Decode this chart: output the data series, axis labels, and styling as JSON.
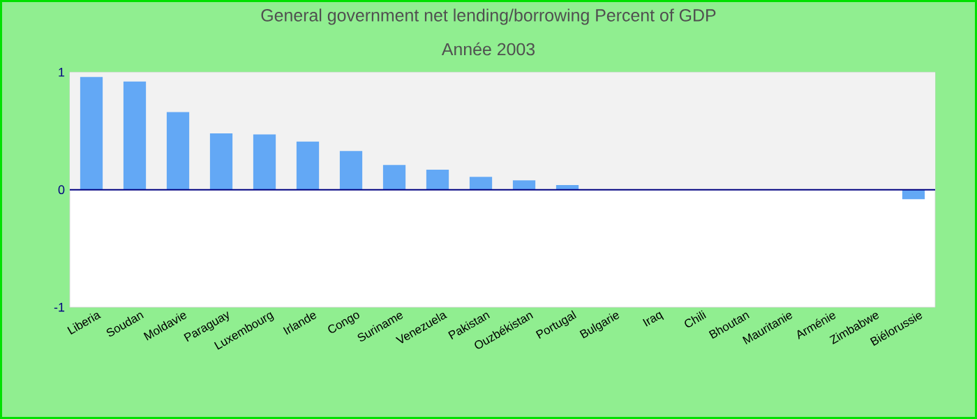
{
  "chart_data": {
    "type": "bar",
    "title": "General government net lending/borrowing  Percent of GDP",
    "subtitle": "Année 2003",
    "categories": [
      "Liberia",
      "Soudan",
      "Moldavie",
      "Paraguay",
      "Luxembourg",
      "Irlande",
      "Congo",
      "Suriname",
      "Venezuela",
      "Pakistan",
      "Ouzbékistan",
      "Portugal",
      "Bulgarie",
      "Iraq",
      "Chili",
      "Bhoutan",
      "Mauritanie",
      "Arménie",
      "Zimbabwe",
      "Biélorussie"
    ],
    "values": [
      0.96,
      0.92,
      0.66,
      0.48,
      0.47,
      0.41,
      0.33,
      0.21,
      0.17,
      0.11,
      0.08,
      0.04,
      null,
      null,
      null,
      null,
      null,
      null,
      null,
      -0.08
    ],
    "color": "#63a8f5",
    "ylim": [
      -1,
      1
    ],
    "yticks": [
      -1,
      0,
      1
    ],
    "bands": [
      {
        "axis": "y",
        "from": 0,
        "to": 1,
        "color": "#f2f2f2"
      }
    ],
    "ref_lines": [
      {
        "axis": "y",
        "value": 0,
        "color": "#000080"
      }
    ],
    "grid": false
  }
}
